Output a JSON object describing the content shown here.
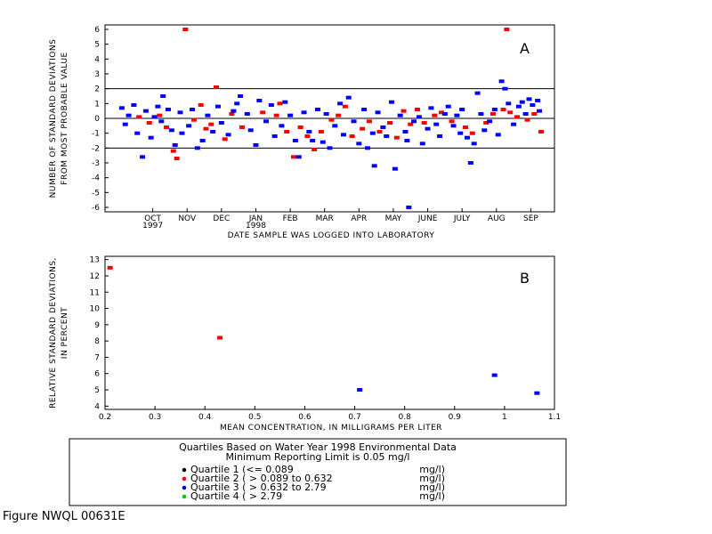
{
  "figure_label": "Figure NWQL 00631E",
  "legend": {
    "title_line1": "Quartiles Based on Water Year 1998 Environmental Data",
    "title_line2": "Minimum Reporting Limit is 0.05 mg/l",
    "items": [
      {
        "name": "Quartile 1",
        "range": "(<= 0.089",
        "unit": "mg/l)",
        "color": "#000000"
      },
      {
        "name": "Quartile 2",
        "range": "( > 0.089 to 0.632",
        "unit": "mg/l)",
        "color": "#ff0000"
      },
      {
        "name": "Quartile 3",
        "range": "( > 0.632 to 2.79",
        "unit": "mg/l)",
        "color": "#0000ff"
      },
      {
        "name": "Quartile 4",
        "range": "( > 2.79",
        "unit": "mg/l)",
        "color": "#00cc00"
      }
    ]
  },
  "chart_data": [
    {
      "type": "scatter",
      "panel_label": "A",
      "xlabel": "DATE SAMPLE WAS LOGGED INTO LABORATORY",
      "ylabel_line1": "NUMBER OF STANDARD DEVIATIONS",
      "ylabel_line2": "FROM MOST PROBABLE VALUE",
      "ylim": [
        -6.3,
        6.3
      ],
      "yticks": [
        -6,
        -5,
        -4,
        -3,
        -2,
        -1,
        0,
        1,
        2,
        3,
        4,
        5,
        6
      ],
      "xlim": [
        0,
        12.3
      ],
      "xtick_labels": [
        {
          "pos": 1,
          "label": "OCT",
          "sub": "1997"
        },
        {
          "pos": 2,
          "label": "NOV",
          "sub": ""
        },
        {
          "pos": 3,
          "label": "DEC",
          "sub": ""
        },
        {
          "pos": 4,
          "label": "JAN",
          "sub": "1998"
        },
        {
          "pos": 5,
          "label": "FEB",
          "sub": ""
        },
        {
          "pos": 6,
          "label": "MAR",
          "sub": ""
        },
        {
          "pos": 7,
          "label": "APR",
          "sub": ""
        },
        {
          "pos": 8,
          "label": "MAY",
          "sub": ""
        },
        {
          "pos": 9,
          "label": "JUNE",
          "sub": ""
        },
        {
          "pos": 10,
          "label": "JULY",
          "sub": ""
        },
        {
          "pos": 11,
          "label": "AUG",
          "sub": ""
        },
        {
          "pos": 12,
          "label": "SEP",
          "sub": ""
        }
      ],
      "reference_lines": [
        2,
        0,
        -2
      ],
      "series": [
        {
          "quartile": 2,
          "color": "#ff0000",
          "points": [
            [
              0.6,
              0.1
            ],
            [
              0.9,
              -0.3
            ],
            [
              1.2,
              0.2
            ],
            [
              1.4,
              -0.6
            ],
            [
              1.6,
              -2.2
            ],
            [
              1.7,
              -2.7
            ],
            [
              1.95,
              6.0
            ],
            [
              2.2,
              -0.1
            ],
            [
              2.4,
              0.9
            ],
            [
              2.55,
              -0.7
            ],
            [
              2.7,
              -0.4
            ],
            [
              2.85,
              2.1
            ],
            [
              3.1,
              -1.4
            ],
            [
              3.3,
              0.3
            ],
            [
              3.6,
              -0.6
            ],
            [
              4.2,
              0.4
            ],
            [
              4.6,
              0.2
            ],
            [
              4.7,
              1.0
            ],
            [
              4.9,
              -0.9
            ],
            [
              5.1,
              -2.6
            ],
            [
              5.3,
              -0.6
            ],
            [
              5.5,
              -1.2
            ],
            [
              5.7,
              -2.1
            ],
            [
              5.9,
              -0.9
            ],
            [
              6.2,
              -0.1
            ],
            [
              6.4,
              0.2
            ],
            [
              6.6,
              0.8
            ],
            [
              6.8,
              -1.2
            ],
            [
              7.1,
              -0.7
            ],
            [
              7.3,
              -0.2
            ],
            [
              7.6,
              -0.9
            ],
            [
              7.9,
              -0.3
            ],
            [
              8.1,
              -1.3
            ],
            [
              8.3,
              0.5
            ],
            [
              8.5,
              -0.4
            ],
            [
              8.7,
              0.6
            ],
            [
              8.9,
              -0.3
            ],
            [
              9.2,
              0.2
            ],
            [
              9.4,
              0.4
            ],
            [
              9.7,
              -0.2
            ],
            [
              10.1,
              -0.6
            ],
            [
              10.3,
              -1.0
            ],
            [
              10.7,
              -0.3
            ],
            [
              10.9,
              0.3
            ],
            [
              11.2,
              0.6
            ],
            [
              11.3,
              6.0
            ],
            [
              11.4,
              0.4
            ],
            [
              11.6,
              0.1
            ],
            [
              11.9,
              -0.1
            ],
            [
              12.1,
              0.3
            ],
            [
              12.3,
              -0.9
            ]
          ]
        },
        {
          "quartile": 3,
          "color": "#0000ff",
          "points": [
            [
              0.1,
              0.7
            ],
            [
              0.2,
              -0.4
            ],
            [
              0.3,
              0.2
            ],
            [
              0.45,
              0.9
            ],
            [
              0.55,
              -1.0
            ],
            [
              0.7,
              -2.6
            ],
            [
              0.8,
              0.5
            ],
            [
              0.95,
              -1.3
            ],
            [
              1.05,
              0.1
            ],
            [
              1.15,
              0.8
            ],
            [
              1.25,
              -0.2
            ],
            [
              1.3,
              1.5
            ],
            [
              1.45,
              0.6
            ],
            [
              1.55,
              -0.8
            ],
            [
              1.65,
              -1.8
            ],
            [
              1.8,
              0.4
            ],
            [
              1.85,
              -1.0
            ],
            [
              2.05,
              -0.5
            ],
            [
              2.15,
              0.6
            ],
            [
              2.3,
              -2.0
            ],
            [
              2.45,
              -1.5
            ],
            [
              2.6,
              0.2
            ],
            [
              2.75,
              -0.9
            ],
            [
              2.9,
              0.8
            ],
            [
              3.0,
              -0.3
            ],
            [
              3.2,
              -1.1
            ],
            [
              3.35,
              0.5
            ],
            [
              3.45,
              1.0
            ],
            [
              3.55,
              1.5
            ],
            [
              3.75,
              0.3
            ],
            [
              3.85,
              -0.8
            ],
            [
              4.0,
              -1.8
            ],
            [
              4.1,
              1.2
            ],
            [
              4.3,
              -0.2
            ],
            [
              4.45,
              0.9
            ],
            [
              4.55,
              -1.2
            ],
            [
              4.75,
              -0.5
            ],
            [
              4.85,
              1.1
            ],
            [
              5.0,
              0.2
            ],
            [
              5.15,
              -1.5
            ],
            [
              5.25,
              -2.6
            ],
            [
              5.4,
              0.4
            ],
            [
              5.55,
              -0.9
            ],
            [
              5.65,
              -1.5
            ],
            [
              5.8,
              0.6
            ],
            [
              5.95,
              -1.6
            ],
            [
              6.05,
              0.3
            ],
            [
              6.15,
              -2.0
            ],
            [
              6.3,
              -0.5
            ],
            [
              6.45,
              1.0
            ],
            [
              6.55,
              -1.1
            ],
            [
              6.7,
              1.4
            ],
            [
              6.85,
              -0.2
            ],
            [
              7.0,
              -1.7
            ],
            [
              7.15,
              0.6
            ],
            [
              7.25,
              -2.0
            ],
            [
              7.4,
              -1.0
            ],
            [
              7.45,
              -3.2
            ],
            [
              7.55,
              0.4
            ],
            [
              7.7,
              -0.6
            ],
            [
              7.8,
              -1.2
            ],
            [
              7.95,
              1.1
            ],
            [
              8.05,
              -3.4
            ],
            [
              8.2,
              0.2
            ],
            [
              8.35,
              -0.9
            ],
            [
              8.4,
              -1.5
            ],
            [
              8.45,
              -6.0
            ],
            [
              8.6,
              -0.2
            ],
            [
              8.75,
              0.1
            ],
            [
              8.85,
              -1.7
            ],
            [
              9.0,
              -0.7
            ],
            [
              9.1,
              0.7
            ],
            [
              9.25,
              -0.4
            ],
            [
              9.35,
              -1.2
            ],
            [
              9.5,
              0.3
            ],
            [
              9.6,
              0.8
            ],
            [
              9.75,
              -0.5
            ],
            [
              9.85,
              0.2
            ],
            [
              9.95,
              -1.0
            ],
            [
              10.0,
              0.6
            ],
            [
              10.15,
              -1.3
            ],
            [
              10.25,
              -3.0
            ],
            [
              10.35,
              -1.7
            ],
            [
              10.45,
              1.7
            ],
            [
              10.55,
              0.3
            ],
            [
              10.65,
              -0.8
            ],
            [
              10.8,
              -0.2
            ],
            [
              10.95,
              0.6
            ],
            [
              11.05,
              -1.1
            ],
            [
              11.15,
              2.5
            ],
            [
              11.25,
              2.0
            ],
            [
              11.35,
              1.0
            ],
            [
              11.5,
              -0.4
            ],
            [
              11.65,
              0.8
            ],
            [
              11.75,
              1.1
            ],
            [
              11.85,
              0.3
            ],
            [
              11.95,
              1.3
            ],
            [
              12.05,
              0.9
            ],
            [
              12.2,
              1.2
            ],
            [
              12.25,
              0.5
            ]
          ]
        }
      ]
    },
    {
      "type": "scatter",
      "panel_label": "B",
      "xlabel": "MEAN CONCENTRATION, IN MILLIGRAMS PER LITER",
      "ylabel_line1": "RELATIVE STANDARD DEVIATIONS,",
      "ylabel_line2": "IN PERCENT",
      "xlim": [
        0.2,
        1.1
      ],
      "ylim": [
        3.8,
        13.2
      ],
      "xticks": [
        0.2,
        0.3,
        0.4,
        0.5,
        0.6,
        0.7,
        0.8,
        0.9,
        1.0,
        1.1
      ],
      "yticks": [
        4,
        5,
        6,
        7,
        8,
        9,
        10,
        11,
        12,
        13
      ],
      "points": [
        {
          "x": 0.21,
          "y": 12.5,
          "color": "#ff0000"
        },
        {
          "x": 0.43,
          "y": 8.2,
          "color": "#ff0000"
        },
        {
          "x": 0.71,
          "y": 5.0,
          "color": "#0000ff"
        },
        {
          "x": 0.98,
          "y": 5.9,
          "color": "#0000ff"
        },
        {
          "x": 1.065,
          "y": 4.8,
          "color": "#0000ff"
        }
      ]
    }
  ]
}
